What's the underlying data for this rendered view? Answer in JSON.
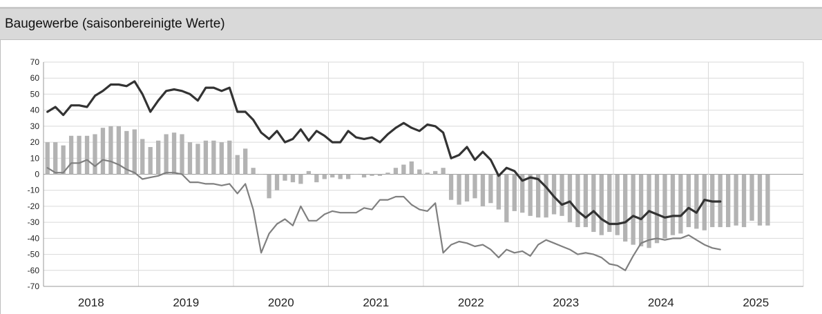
{
  "title": "Baugewerbe (saisonbereinigte Werte)",
  "chart_data": {
    "type": "line",
    "title": "Baugewerbe (saisonbereinigte Werte)",
    "ylim": [
      -70,
      70
    ],
    "yticks": [
      "70",
      "60",
      "50",
      "40",
      "30",
      "20",
      "10",
      "0",
      "-10",
      "-20",
      "-30",
      "-40",
      "-50",
      "-60",
      "-70"
    ],
    "x_year_labels": [
      "2018",
      "2019",
      "2020",
      "2021",
      "2022",
      "2023",
      "2024",
      "2025"
    ],
    "x_start": "2018-01",
    "grid": true,
    "legend": "none",
    "colors": {
      "bars": "#b3b3b3",
      "line_dark": "#333333",
      "line_light": "#7f7f7f",
      "grid": "#d9d9d9"
    },
    "series": [
      {
        "type": "bar",
        "values": [
          20,
          20,
          18,
          24,
          24,
          24,
          25,
          29,
          30,
          30,
          27,
          28,
          22,
          17,
          21,
          25,
          26,
          25,
          20,
          19,
          21,
          21,
          20,
          21,
          12,
          16,
          4,
          0,
          -15,
          -10,
          -4,
          -5,
          -6,
          2,
          -5,
          -3,
          -2,
          -3,
          -3,
          0,
          -2,
          -1,
          -1,
          1,
          4,
          6,
          8,
          3,
          1,
          2,
          4,
          -16,
          -19,
          -17,
          -15,
          -20,
          -18,
          -22,
          -30,
          -23,
          -24,
          -26,
          -27,
          -27,
          -25,
          -26,
          -30,
          -33,
          -33,
          -36,
          -38,
          -36,
          -38,
          -42,
          -44,
          -45,
          -46,
          -43,
          -40,
          -38,
          -37,
          -33,
          -34,
          -35,
          -33,
          -33,
          -33,
          -32,
          -33,
          -29,
          -32,
          -32
        ]
      },
      {
        "type": "line",
        "values": [
          39,
          42,
          37,
          43,
          43,
          42,
          49,
          52,
          56,
          56,
          55,
          58,
          50,
          39,
          46,
          52,
          53,
          52,
          50,
          46,
          54,
          54,
          52,
          54,
          39,
          39,
          34,
          26,
          22,
          27,
          20,
          22,
          28,
          21,
          27,
          24,
          20,
          20,
          27,
          23,
          22,
          23,
          20,
          25,
          29,
          32,
          29,
          27,
          31,
          30,
          26,
          10,
          12,
          17,
          9,
          14,
          9,
          -1,
          4,
          2,
          -4,
          -2,
          -3,
          -8,
          -14,
          -19,
          -17,
          -23,
          -27,
          -23,
          -28,
          -31,
          -31,
          -30,
          -26,
          -28,
          -23,
          -25,
          -27,
          -26,
          -26,
          -21,
          -24,
          -16,
          -17,
          -17
        ]
      },
      {
        "type": "line",
        "values": [
          4,
          1,
          1,
          7,
          7,
          9,
          5,
          9,
          8,
          6,
          3,
          1,
          -3,
          -2,
          -1,
          1,
          1,
          0,
          -5,
          -5,
          -6,
          -6,
          -7,
          -6,
          -12,
          -6,
          -22,
          -49,
          -37,
          -31,
          -28,
          -32,
          -20,
          -29,
          -29,
          -25,
          -23,
          -24,
          -24,
          -24,
          -21,
          -22,
          -16,
          -16,
          -14,
          -14,
          -19,
          -22,
          -23,
          -18,
          -49,
          -44,
          -42,
          -43,
          -45,
          -44,
          -47,
          -52,
          -47,
          -49,
          -48,
          -51,
          -44,
          -41,
          -43,
          -45,
          -47,
          -50,
          -49,
          -50,
          -52,
          -56,
          -57,
          -60,
          -51,
          -43,
          -41,
          -40,
          -41,
          -40,
          -40,
          -38,
          -41,
          -44,
          -46,
          -47
        ]
      }
    ]
  }
}
